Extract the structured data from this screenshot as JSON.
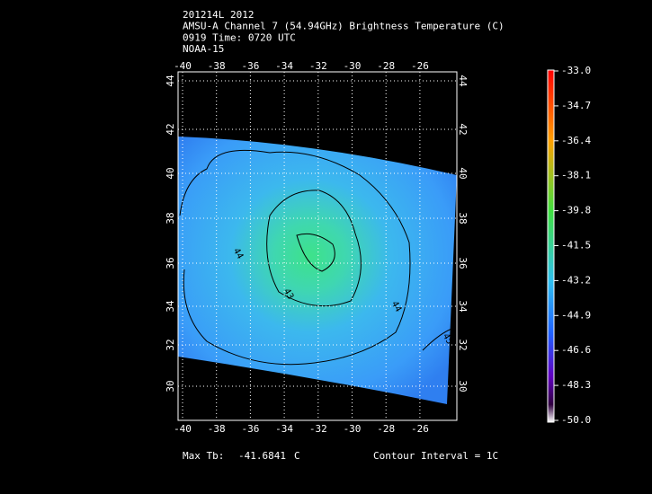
{
  "header": {
    "lines": [
      "201214L 2012",
      "AMSU-A Channel 7 (54.94GHz) Brightness Temperature (C)",
      "0919 Time: 0720 UTC",
      "NOAA-15"
    ]
  },
  "map": {
    "lon_ticks": [
      "-40",
      "-38",
      "-36",
      "-34",
      "-32",
      "-30",
      "-28",
      "-26"
    ],
    "lat_ticks": [
      "44",
      "42",
      "40",
      "38",
      "36",
      "34",
      "32",
      "30"
    ],
    "contour_labels": [
      "44",
      "43",
      "44",
      "45"
    ]
  },
  "colorbar": {
    "labels": [
      "-33.0",
      "-34.7",
      "-36.4",
      "-38.1",
      "-39.8",
      "-41.5",
      "-43.2",
      "-44.9",
      "-46.6",
      "-48.3",
      "-50.0"
    ]
  },
  "footer": {
    "max_label": "Max Tb:",
    "max_value": "-41.6841",
    "max_unit": "C",
    "contour_interval": "Contour Interval = 1C"
  }
}
